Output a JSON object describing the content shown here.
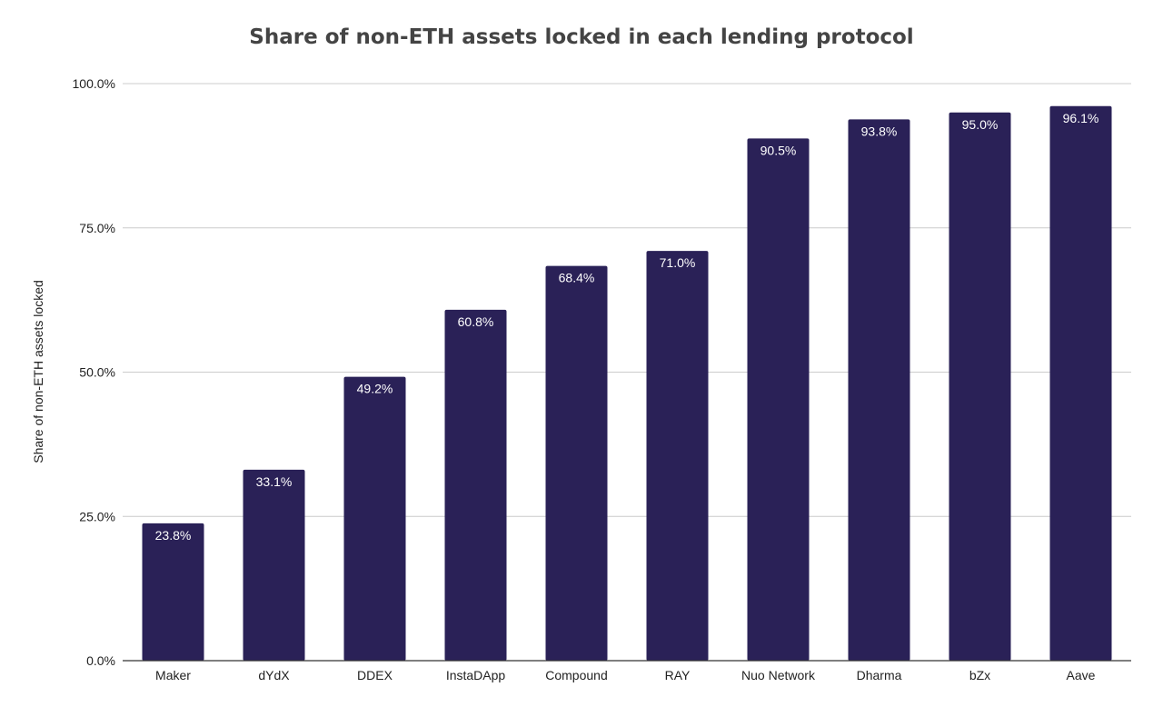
{
  "chart_data": {
    "type": "bar",
    "title": "Share of non-ETH assets locked in each lending protocol",
    "xlabel": "",
    "ylabel": "Share of non-ETH assets locked",
    "categories": [
      "Maker",
      "dYdX",
      "DDEX",
      "InstaDApp",
      "Compound",
      "RAY",
      "Nuo Network",
      "Dharma",
      "bZx",
      "Aave"
    ],
    "values": [
      23.8,
      33.1,
      49.2,
      60.8,
      68.4,
      71.0,
      90.5,
      93.8,
      95.0,
      96.1
    ],
    "value_labels": [
      "23.8%",
      "33.1%",
      "49.2%",
      "60.8%",
      "68.4%",
      "71.0%",
      "90.5%",
      "93.8%",
      "95.0%",
      "96.1%"
    ],
    "ylim": [
      0,
      100
    ],
    "yticks": [
      0,
      25,
      50,
      75,
      100
    ],
    "ytick_labels": [
      "0.0%",
      "25.0%",
      "50.0%",
      "75.0%",
      "100.0%"
    ],
    "grid": true,
    "legend": "none",
    "bar_color": "#2a2157",
    "grid_color": "#cccccc",
    "axis_color": "#333333"
  }
}
